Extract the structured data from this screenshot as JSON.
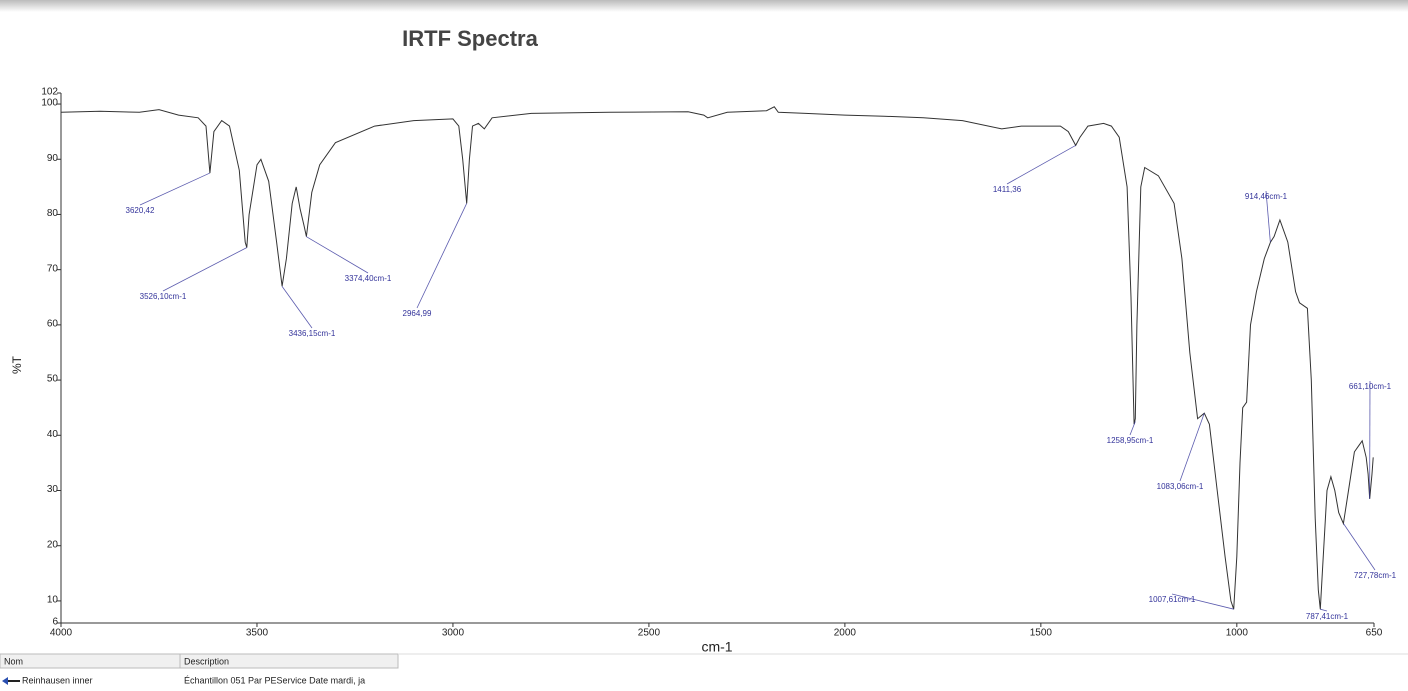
{
  "chart_data": {
    "type": "line",
    "title": "IRTF Spectra",
    "x_label": "cm-1",
    "y_label": "%T",
    "color": "#333333",
    "annotation_color": "#33339a",
    "xlim": [
      4000,
      650
    ],
    "ylim": [
      6,
      102
    ],
    "xticks": [
      4000,
      3500,
      3000,
      2500,
      2000,
      1500,
      1000,
      650
    ],
    "yticks": [
      6,
      10,
      20,
      30,
      40,
      50,
      60,
      70,
      80,
      90,
      100,
      102
    ],
    "x": [
      4000,
      3900,
      3800,
      3750,
      3700,
      3650,
      3630,
      3620,
      3610,
      3590,
      3570,
      3545,
      3530,
      3526,
      3520,
      3500,
      3490,
      3470,
      3450,
      3436,
      3425,
      3410,
      3400,
      3390,
      3380,
      3374,
      3360,
      3340,
      3300,
      3200,
      3100,
      3000,
      2985,
      2975,
      2965,
      2958,
      2950,
      2935,
      2920,
      2900,
      2800,
      2600,
      2400,
      2360,
      2350,
      2300,
      2200,
      2180,
      2170,
      2100,
      2000,
      1900,
      1800,
      1700,
      1600,
      1550,
      1450,
      1430,
      1411,
      1400,
      1380,
      1340,
      1320,
      1300,
      1280,
      1270,
      1262,
      1259,
      1255,
      1245,
      1235,
      1200,
      1160,
      1140,
      1120,
      1100,
      1083,
      1070,
      1050,
      1030,
      1015,
      1008,
      1000,
      992,
      985,
      975,
      965,
      950,
      930,
      914,
      905,
      890,
      870,
      850,
      840,
      820,
      810,
      800,
      792,
      787,
      782,
      770,
      760,
      750,
      740,
      728,
      715,
      700,
      690,
      680,
      670,
      665,
      661,
      655,
      652
    ],
    "values": [
      98.5,
      98.7,
      98.5,
      99,
      98,
      97.5,
      96,
      87.5,
      95,
      97,
      96,
      88,
      75,
      74,
      80,
      89,
      90,
      86,
      75,
      67,
      72,
      82,
      85,
      81,
      78,
      76,
      84,
      89,
      93,
      96,
      97,
      97.3,
      96,
      90,
      82,
      90,
      96,
      96.5,
      95.5,
      97.5,
      98.3,
      98.5,
      98.6,
      98,
      97.5,
      98.5,
      98.8,
      99.5,
      98.5,
      98.3,
      98,
      97.8,
      97.5,
      97,
      95.5,
      96,
      96,
      95,
      92.5,
      94,
      96,
      96.5,
      96,
      94,
      85,
      65,
      42,
      43,
      60,
      85,
      88.5,
      87,
      82,
      72,
      55,
      43,
      44,
      42,
      30,
      18,
      10,
      8.5,
      18,
      35,
      45,
      46,
      60,
      66,
      72,
      75,
      76,
      79,
      75,
      66,
      64,
      63,
      50,
      25,
      12,
      8.5,
      15,
      30,
      32.5,
      30,
      26,
      24,
      30,
      37,
      38,
      39,
      36,
      33,
      28.5,
      33,
      36
    ],
    "annotations": [
      {
        "x": 3620.42,
        "y": 87.5,
        "label": "3620,42"
      },
      {
        "x": 3526.1,
        "y": 74,
        "label": "3526,10cm-1"
      },
      {
        "x": 3436.15,
        "y": 67,
        "label": "3436,15cm-1"
      },
      {
        "x": 3374.4,
        "y": 76,
        "label": "3374,40cm-1"
      },
      {
        "x": 2964.99,
        "y": 82,
        "label": "2964,99"
      },
      {
        "x": 1411.36,
        "y": 92.5,
        "label": "1411,36"
      },
      {
        "x": 1258.95,
        "y": 42.5,
        "label": "1258,95cm-1"
      },
      {
        "x": 1083.06,
        "y": 44,
        "label": "1083,06cm-1"
      },
      {
        "x": 1007.61,
        "y": 8.5,
        "label": "1007,61cm-1"
      },
      {
        "x": 914.46,
        "y": 75,
        "label": "914,46cm-1"
      },
      {
        "x": 787.41,
        "y": 8.5,
        "label": "787,41cm-1"
      },
      {
        "x": 727.78,
        "y": 24,
        "label": "727,78cm-1"
      },
      {
        "x": 661.1,
        "y": 28.5,
        "label": "661,10cm-1"
      }
    ]
  },
  "table": {
    "headers": [
      "Nom",
      "Description"
    ],
    "rows": [
      [
        "Reinhausen inner",
        "Échantillon 051 Par PEService Date mardi, ja"
      ]
    ]
  }
}
